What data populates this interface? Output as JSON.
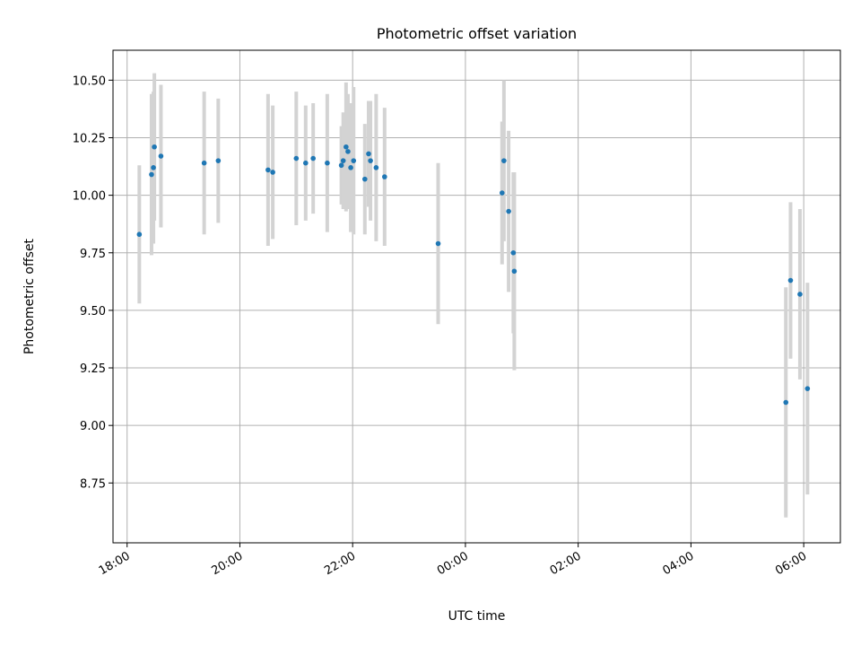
{
  "chart_data": {
    "type": "scatter",
    "title": "Photometric offset variation",
    "xlabel": "UTC time",
    "ylabel": "Photometric offset",
    "x_tick_labels": [
      "18:00",
      "20:00",
      "22:00",
      "00:00",
      "02:00",
      "04:00",
      "06:00"
    ],
    "y_tick_labels": [
      "8.75",
      "9.00",
      "9.25",
      "9.50",
      "9.75",
      "10.00",
      "10.25",
      "10.50"
    ],
    "x_ticks": [
      "18:00",
      "20:00",
      "22:00",
      "00:00",
      "02:00",
      "04:00",
      "06:00"
    ],
    "y_ticks": [
      8.75,
      9.0,
      9.25,
      9.5,
      9.75,
      10.0,
      10.25,
      10.5
    ],
    "xlim": [
      "17:45",
      "+06:39"
    ],
    "ylim": [
      8.49,
      10.63
    ],
    "grid": true,
    "colors": {
      "point": "#1f77b4",
      "errorbar": "#d3d3d3",
      "grid": "#b0b0b0"
    },
    "series": [
      {
        "points": [
          {
            "x": "18:13",
            "y": 9.83,
            "err": 0.3
          },
          {
            "x": "18:26",
            "y": 10.09,
            "err": 0.35
          },
          {
            "x": "18:28",
            "y": 10.12,
            "err": 0.33
          },
          {
            "x": "18:29",
            "y": 10.21,
            "err": 0.32
          },
          {
            "x": "18:36",
            "y": 10.17,
            "err": 0.31
          },
          {
            "x": "19:22",
            "y": 10.14,
            "err": 0.31
          },
          {
            "x": "19:37",
            "y": 10.15,
            "err": 0.27
          },
          {
            "x": "20:30",
            "y": 10.11,
            "err": 0.33
          },
          {
            "x": "20:35",
            "y": 10.1,
            "err": 0.29
          },
          {
            "x": "21:00",
            "y": 10.16,
            "err": 0.29
          },
          {
            "x": "21:10",
            "y": 10.14,
            "err": 0.25
          },
          {
            "x": "21:18",
            "y": 10.16,
            "err": 0.24
          },
          {
            "x": "21:33",
            "y": 10.14,
            "err": 0.3
          },
          {
            "x": "21:48",
            "y": 10.13,
            "err": 0.17
          },
          {
            "x": "21:50",
            "y": 10.15,
            "err": 0.21
          },
          {
            "x": "21:53",
            "y": 10.21,
            "err": 0.28
          },
          {
            "x": "21:55",
            "y": 10.19,
            "err": 0.25
          },
          {
            "x": "21:58",
            "y": 10.12,
            "err": 0.28
          },
          {
            "x": "22:01",
            "y": 10.15,
            "err": 0.32
          },
          {
            "x": "22:13",
            "y": 10.07,
            "err": 0.24
          },
          {
            "x": "22:17",
            "y": 10.18,
            "err": 0.23
          },
          {
            "x": "22:19",
            "y": 10.15,
            "err": 0.26
          },
          {
            "x": "22:25",
            "y": 10.12,
            "err": 0.32
          },
          {
            "x": "22:34",
            "y": 10.08,
            "err": 0.3
          },
          {
            "x": "23:31",
            "y": 9.79,
            "err": 0.35
          },
          {
            "x": "00:39",
            "y": 10.01,
            "err": 0.31
          },
          {
            "x": "00:41",
            "y": 10.15,
            "err": 0.35
          },
          {
            "x": "00:46",
            "y": 9.93,
            "err": 0.35
          },
          {
            "x": "00:51",
            "y": 9.75,
            "err": 0.35
          },
          {
            "x": "00:52",
            "y": 9.67,
            "err": 0.43
          },
          {
            "x": "05:41",
            "y": 9.1,
            "err": 0.5
          },
          {
            "x": "05:46",
            "y": 9.63,
            "err": 0.34
          },
          {
            "x": "05:56",
            "y": 9.57,
            "err": 0.37
          },
          {
            "x": "06:04",
            "y": 9.16,
            "err": 0.46
          }
        ]
      }
    ]
  }
}
